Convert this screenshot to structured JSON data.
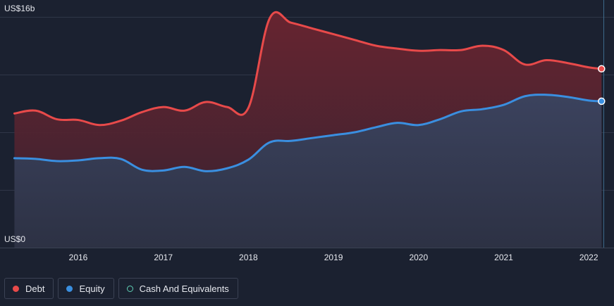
{
  "chart_data": {
    "type": "area",
    "y_labels": {
      "top": "US$16b",
      "bottom": "US$0"
    },
    "ylim": [
      0,
      16
    ],
    "x_ticks": [
      {
        "label": "2016",
        "x": 2016
      },
      {
        "label": "2017",
        "x": 2017
      },
      {
        "label": "2018",
        "x": 2018
      },
      {
        "label": "2019",
        "x": 2019
      },
      {
        "label": "2020",
        "x": 2020
      },
      {
        "label": "2021",
        "x": 2021
      },
      {
        "label": "2022",
        "x": 2022
      }
    ],
    "xlim": [
      2015.0,
      2022.3
    ],
    "grid": true,
    "legend_position": "bottom-left",
    "series": [
      {
        "name": "Debt",
        "color": "#e84a4a",
        "points": [
          [
            2015.25,
            9.3
          ],
          [
            2015.5,
            9.5
          ],
          [
            2015.75,
            8.9
          ],
          [
            2016.0,
            8.85
          ],
          [
            2016.25,
            8.5
          ],
          [
            2016.5,
            8.8
          ],
          [
            2016.75,
            9.4
          ],
          [
            2017.0,
            9.75
          ],
          [
            2017.25,
            9.5
          ],
          [
            2017.5,
            10.1
          ],
          [
            2017.75,
            9.75
          ],
          [
            2018.0,
            9.7
          ],
          [
            2018.25,
            15.9
          ],
          [
            2018.5,
            15.6
          ],
          [
            2018.75,
            15.2
          ],
          [
            2019.0,
            14.8
          ],
          [
            2019.25,
            14.4
          ],
          [
            2019.5,
            14.0
          ],
          [
            2019.75,
            13.8
          ],
          [
            2020.0,
            13.65
          ],
          [
            2020.25,
            13.7
          ],
          [
            2020.5,
            13.7
          ],
          [
            2020.75,
            14.0
          ],
          [
            2021.0,
            13.7
          ],
          [
            2021.25,
            12.7
          ],
          [
            2021.5,
            13.0
          ],
          [
            2021.75,
            12.8
          ],
          [
            2022.0,
            12.5
          ],
          [
            2022.15,
            12.4
          ]
        ]
      },
      {
        "name": "Equity",
        "color": "#3a8fe0",
        "points": [
          [
            2015.25,
            6.2
          ],
          [
            2015.5,
            6.15
          ],
          [
            2015.75,
            6.0
          ],
          [
            2016.0,
            6.05
          ],
          [
            2016.25,
            6.2
          ],
          [
            2016.5,
            6.15
          ],
          [
            2016.75,
            5.4
          ],
          [
            2017.0,
            5.35
          ],
          [
            2017.25,
            5.6
          ],
          [
            2017.5,
            5.3
          ],
          [
            2017.75,
            5.5
          ],
          [
            2018.0,
            6.1
          ],
          [
            2018.25,
            7.3
          ],
          [
            2018.5,
            7.4
          ],
          [
            2018.75,
            7.6
          ],
          [
            2019.0,
            7.8
          ],
          [
            2019.25,
            8.0
          ],
          [
            2019.5,
            8.35
          ],
          [
            2019.75,
            8.65
          ],
          [
            2020.0,
            8.5
          ],
          [
            2020.25,
            8.9
          ],
          [
            2020.5,
            9.45
          ],
          [
            2020.75,
            9.6
          ],
          [
            2021.0,
            9.9
          ],
          [
            2021.25,
            10.5
          ],
          [
            2021.5,
            10.6
          ],
          [
            2021.75,
            10.45
          ],
          [
            2022.0,
            10.2
          ],
          [
            2022.15,
            10.15
          ]
        ]
      }
    ]
  },
  "legend": [
    {
      "label": "Debt",
      "color": "#e84a4a",
      "style": "filled"
    },
    {
      "label": "Equity",
      "color": "#3a8fe0",
      "style": "filled"
    },
    {
      "label": "Cash And Equivalents",
      "color": "#5fd0b5",
      "style": "hollow"
    }
  ]
}
